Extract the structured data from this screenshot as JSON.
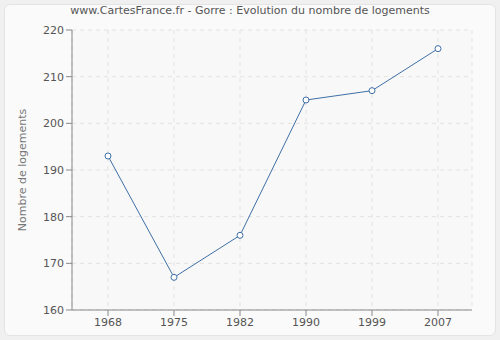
{
  "chart_data": {
    "type": "line",
    "title": "www.CartesFrance.fr - Gorre : Evolution du nombre de logements",
    "y_label": "Nombre de logements",
    "categories": [
      "1968",
      "1975",
      "1982",
      "1990",
      "1999",
      "2007"
    ],
    "values": [
      193,
      167,
      176,
      205,
      207,
      216
    ],
    "color": "#3f6fa5",
    "marker": "circle",
    "ylim": [
      160,
      220
    ],
    "yticks": [
      160,
      170,
      180,
      190,
      200,
      210,
      220
    ],
    "grid": true
  }
}
